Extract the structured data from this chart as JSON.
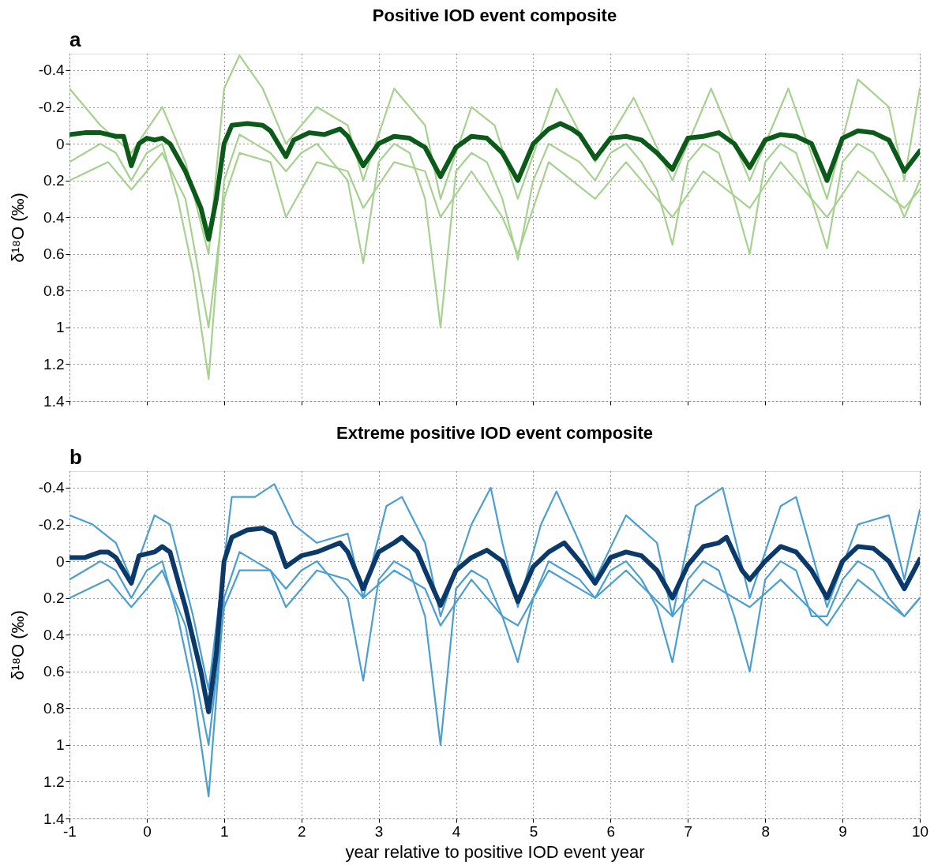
{
  "chart_data": [
    {
      "type": "line",
      "title": "Positive IOD event composite",
      "annotations": [
        "a"
      ],
      "ylabel": "δ¹⁸O (‰)",
      "xlim": [
        -1,
        10
      ],
      "xticks": [
        -1,
        0,
        1,
        2,
        3,
        4,
        5,
        6,
        7,
        8,
        9,
        10
      ],
      "ylim": [
        1.4,
        -0.49
      ],
      "yticks": [
        -0.4,
        -0.2,
        0,
        0.2,
        0.4,
        0.6,
        0.8,
        1,
        1.2,
        1.4
      ],
      "grid": true,
      "tick_labels": "y",
      "line_style": "solid",
      "marker": "none",
      "series": [
        {
          "color": "#a6d18e",
          "x": [
            -1,
            -0.8,
            -0.6,
            -0.4,
            -0.2,
            0,
            0.2,
            0.4,
            0.6,
            0.8,
            1,
            1.2,
            1.4,
            1.6,
            1.8,
            2,
            2.2,
            2.4,
            2.6,
            2.8,
            3,
            3.2,
            3.4,
            3.6,
            3.8,
            4,
            4.2,
            4.4,
            4.6,
            4.8,
            5,
            5.2,
            5.4,
            5.6,
            5.8,
            6,
            6.2,
            6.4,
            6.6,
            6.8,
            7,
            7.2,
            7.4,
            7.6,
            7.8,
            8,
            8.2,
            8.4,
            8.6,
            8.8,
            9,
            9.2,
            9.4,
            9.6,
            9.8,
            10
          ],
          "values": [
            0.1,
            0.05,
            0,
            0.05,
            0.2,
            0.05,
            0,
            0.3,
            0.7,
            1.28,
            0.2,
            -0.05,
            0,
            0.05,
            0.15,
            0.05,
            0,
            0.1,
            0.2,
            0.65,
            0.1,
            0,
            0.05,
            0.3,
            1.0,
            0.15,
            0.05,
            0.1,
            0.3,
            0.63,
            0.2,
            0,
            0.05,
            0.1,
            0.2,
            0.05,
            0,
            0.1,
            0.25,
            0.55,
            0.1,
            0,
            0.05,
            0.3,
            0.6,
            0.1,
            0,
            0.05,
            0.3,
            0.57,
            0.1,
            0,
            0.05,
            0.2,
            0.4,
            0.2
          ]
        },
        {
          "color": "#a6d18e",
          "x": [
            -1,
            -0.6,
            -0.2,
            0.2,
            0.5,
            0.8,
            1,
            1.2,
            1.5,
            1.8,
            2.2,
            2.6,
            2.8,
            3.2,
            3.6,
            3.8,
            4.2,
            4.5,
            4.8,
            5.3,
            5.8,
            6.3,
            6.8,
            7.3,
            7.8,
            8.3,
            8.8,
            9.2,
            9.6,
            9.8,
            10
          ],
          "values": [
            -0.3,
            -0.1,
            0.05,
            -0.2,
            0.1,
            0.6,
            -0.3,
            -0.48,
            -0.3,
            0,
            -0.2,
            -0.1,
            0.2,
            -0.3,
            -0.1,
            0.3,
            -0.2,
            -0.1,
            0.3,
            -0.3,
            0.1,
            -0.25,
            0.2,
            -0.3,
            0.2,
            -0.3,
            0.3,
            -0.35,
            -0.2,
            0.2,
            -0.3
          ]
        },
        {
          "color": "#a6d18e",
          "x": [
            -1,
            -0.5,
            -0.2,
            0.2,
            0.5,
            0.8,
            1,
            1.2,
            1.6,
            1.8,
            2.2,
            2.6,
            2.8,
            3.2,
            3.6,
            3.8,
            4.2,
            4.6,
            4.8,
            5.2,
            5.8,
            6.2,
            6.8,
            7.2,
            7.8,
            8.2,
            8.8,
            9.2,
            9.8,
            10
          ],
          "values": [
            0.2,
            0.1,
            0.25,
            0.05,
            0.3,
            1.0,
            0.3,
            0.05,
            0.1,
            0.4,
            0.1,
            0.15,
            0.35,
            0.1,
            0.15,
            0.4,
            0.15,
            0.4,
            0.6,
            0.1,
            0.3,
            0.1,
            0.4,
            0.15,
            0.35,
            0.1,
            0.4,
            0.15,
            0.35,
            0.25
          ]
        },
        {
          "color": "#0b5a1a",
          "x": [
            -1,
            -0.8,
            -0.6,
            -0.4,
            -0.3,
            -0.2,
            -0.1,
            0,
            0.1,
            0.2,
            0.3,
            0.5,
            0.7,
            0.8,
            0.9,
            1,
            1.1,
            1.3,
            1.5,
            1.6,
            1.8,
            1.9,
            2.1,
            2.3,
            2.5,
            2.6,
            2.8,
            3,
            3.2,
            3.4,
            3.6,
            3.8,
            4,
            4.2,
            4.4,
            4.6,
            4.8,
            5,
            5.2,
            5.35,
            5.5,
            5.6,
            5.8,
            6,
            6.2,
            6.4,
            6.6,
            6.8,
            7,
            7.2,
            7.4,
            7.6,
            7.8,
            8,
            8.2,
            8.4,
            8.6,
            8.8,
            9,
            9.2,
            9.4,
            9.6,
            9.8,
            10
          ],
          "values": [
            -0.05,
            -0.06,
            -0.06,
            -0.04,
            -0.04,
            0.12,
            0,
            -0.03,
            -0.02,
            -0.03,
            0,
            0.15,
            0.35,
            0.52,
            0.3,
            0,
            -0.1,
            -0.11,
            -0.1,
            -0.07,
            0.07,
            -0.02,
            -0.06,
            -0.05,
            -0.08,
            -0.04,
            0.12,
            0,
            -0.04,
            -0.03,
            0.02,
            0.18,
            0.02,
            -0.04,
            -0.03,
            0.05,
            0.2,
            0,
            -0.08,
            -0.11,
            -0.08,
            -0.05,
            0.08,
            -0.03,
            -0.04,
            -0.02,
            0.05,
            0.14,
            -0.03,
            -0.04,
            -0.06,
            0,
            0.13,
            -0.02,
            -0.05,
            -0.04,
            0,
            0.2,
            -0.03,
            -0.07,
            -0.06,
            -0.02,
            0.15,
            0.04
          ]
        }
      ]
    },
    {
      "type": "line",
      "title": "Extreme positive IOD event composite",
      "annotations": [
        "b"
      ],
      "xlabel": "year relative to positive IOD event year",
      "ylabel": "δ¹⁸O (‰)",
      "xlim": [
        -1,
        10
      ],
      "xticks": [
        -1,
        0,
        1,
        2,
        3,
        4,
        5,
        6,
        7,
        8,
        9,
        10
      ],
      "ylim": [
        1.4,
        -0.49
      ],
      "yticks": [
        -0.4,
        -0.2,
        0,
        0.2,
        0.4,
        0.6,
        0.8,
        1,
        1.2,
        1.4
      ],
      "grid": true,
      "line_style": "solid",
      "marker": "none",
      "series": [
        {
          "color": "#4a9fd0",
          "x": [
            -1,
            -0.8,
            -0.6,
            -0.4,
            -0.2,
            0,
            0.2,
            0.4,
            0.6,
            0.8,
            1,
            1.2,
            1.4,
            1.6,
            1.8,
            2,
            2.2,
            2.4,
            2.6,
            2.8,
            3,
            3.2,
            3.4,
            3.6,
            3.8,
            4,
            4.2,
            4.4,
            4.6,
            4.8,
            5,
            5.2,
            5.4,
            5.6,
            5.8,
            6,
            6.2,
            6.4,
            6.6,
            6.8,
            7,
            7.2,
            7.4,
            7.6,
            7.8,
            8,
            8.2,
            8.4,
            8.6,
            8.8,
            9,
            9.2,
            9.4,
            9.6,
            9.8,
            10
          ],
          "values": [
            0.1,
            0.05,
            0,
            0.05,
            0.2,
            0.05,
            0,
            0.3,
            0.7,
            1.28,
            0.2,
            -0.05,
            0,
            0.05,
            0.15,
            0.05,
            0,
            0.1,
            0.2,
            0.65,
            0.1,
            0,
            0.05,
            0.3,
            1.0,
            0.15,
            0.05,
            0.1,
            0.3,
            0.55,
            0.2,
            0,
            0.05,
            0.1,
            0.2,
            0.05,
            0,
            0.1,
            0.25,
            0.55,
            0.1,
            0,
            0.05,
            0.3,
            0.6,
            0.1,
            0,
            0.05,
            0.3,
            0.3,
            0.1,
            0,
            0.05,
            0.2,
            0.3,
            0.2
          ]
        },
        {
          "color": "#4a9fd0",
          "x": [
            -1,
            -0.7,
            -0.4,
            -0.2,
            0.1,
            0.3,
            0.6,
            0.8,
            1.1,
            1.4,
            1.65,
            1.9,
            2.2,
            2.6,
            2.8,
            3.1,
            3.3,
            3.6,
            3.8,
            4.2,
            4.45,
            4.6,
            4.8,
            5.1,
            5.3,
            5.6,
            5.8,
            6.2,
            6.6,
            6.8,
            7.1,
            7.45,
            7.8,
            8.2,
            8.4,
            8.8,
            9.2,
            9.6,
            9.8,
            10
          ],
          "values": [
            -0.25,
            -0.2,
            -0.1,
            0.1,
            -0.25,
            -0.2,
            0.3,
            0.7,
            -0.35,
            -0.35,
            -0.42,
            -0.2,
            -0.1,
            -0.15,
            0.2,
            -0.3,
            -0.35,
            -0.1,
            0.3,
            -0.2,
            -0.4,
            -0.1,
            0.25,
            -0.2,
            -0.38,
            -0.1,
            0.1,
            -0.25,
            -0.1,
            0.3,
            -0.3,
            -0.4,
            0.2,
            -0.3,
            -0.35,
            0.25,
            -0.2,
            -0.25,
            0.1,
            -0.28
          ]
        },
        {
          "color": "#4a9fd0",
          "x": [
            -1,
            -0.5,
            -0.2,
            0.2,
            0.5,
            0.8,
            1,
            1.2,
            1.6,
            1.8,
            2.2,
            2.6,
            2.8,
            3.2,
            3.6,
            3.8,
            4.2,
            4.6,
            4.8,
            5.2,
            5.8,
            6.2,
            6.8,
            7.2,
            7.8,
            8.2,
            8.8,
            9.2,
            9.8,
            10
          ],
          "values": [
            0.2,
            0.1,
            0.25,
            0.05,
            0.35,
            1.0,
            0.25,
            0.05,
            0.05,
            0.25,
            0.05,
            0.1,
            0.2,
            0.05,
            0.15,
            0.35,
            0.1,
            0.3,
            0.35,
            0.05,
            0.2,
            0.05,
            0.3,
            0.1,
            0.25,
            0.1,
            0.35,
            0.1,
            0.3,
            0.2
          ]
        },
        {
          "color": "#0b3a6a",
          "x": [
            -1,
            -0.8,
            -0.6,
            -0.5,
            -0.4,
            -0.2,
            -0.1,
            0.1,
            0.2,
            0.3,
            0.5,
            0.7,
            0.8,
            0.9,
            1,
            1.1,
            1.3,
            1.5,
            1.65,
            1.8,
            2,
            2.2,
            2.5,
            2.6,
            2.8,
            3,
            3.2,
            3.3,
            3.5,
            3.6,
            3.8,
            4,
            4.2,
            4.4,
            4.6,
            4.8,
            5,
            5.2,
            5.4,
            5.6,
            5.8,
            6,
            6.2,
            6.4,
            6.6,
            6.8,
            7,
            7.2,
            7.4,
            7.5,
            7.7,
            7.8,
            8,
            8.2,
            8.4,
            8.6,
            8.8,
            9,
            9.2,
            9.4,
            9.6,
            9.8,
            10
          ],
          "values": [
            -0.02,
            -0.02,
            -0.05,
            -0.05,
            -0.02,
            0.12,
            -0.03,
            -0.05,
            -0.08,
            -0.05,
            0.25,
            0.6,
            0.82,
            0.5,
            0,
            -0.13,
            -0.17,
            -0.18,
            -0.15,
            0.03,
            -0.03,
            -0.05,
            -0.1,
            -0.05,
            0.15,
            -0.05,
            -0.1,
            -0.13,
            -0.05,
            0.05,
            0.24,
            0.05,
            -0.02,
            -0.06,
            0,
            0.22,
            0.03,
            -0.05,
            -0.1,
            0,
            0.12,
            -0.02,
            -0.05,
            -0.03,
            0.05,
            0.2,
            0.02,
            -0.08,
            -0.1,
            -0.13,
            0.05,
            0.1,
            0,
            -0.08,
            -0.05,
            0.05,
            0.2,
            0,
            -0.08,
            -0.07,
            0,
            0.15,
            -0.01
          ]
        }
      ]
    }
  ]
}
